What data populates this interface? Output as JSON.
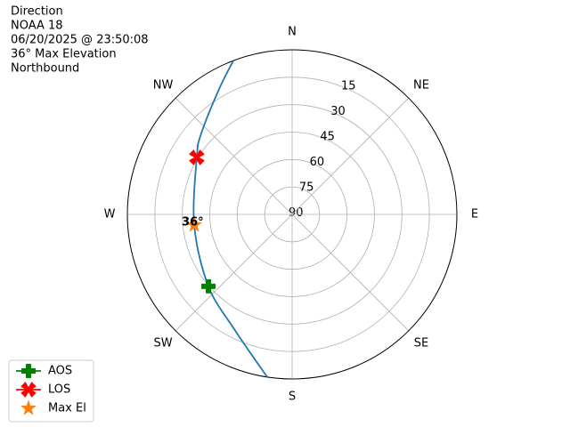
{
  "chart_data": {
    "type": "polar",
    "title_lines": [
      "Direction",
      "NOAA 18",
      "06/20/2025 @ 23:50:08",
      "36° Max Elevation",
      "Northbound"
    ],
    "track": {
      "azimuth": [
        188.7,
        206.7,
        229.3,
        263.8,
        300.9,
        311.7,
        329.8,
        339.1
      ],
      "elevation": [
        0,
        19.7,
        29.7,
        36.2,
        29.3,
        23.5,
        10.7,
        0
      ],
      "color": "#1f77b4"
    },
    "markers": [
      {
        "name": "AOS",
        "azimuth": 229.3,
        "elevation": 29.7,
        "color": "#008000",
        "marker": "plus",
        "line": true
      },
      {
        "name": "LOS",
        "azimuth": 300.9,
        "elevation": 29.3,
        "color": "#ff0000",
        "marker": "x",
        "line": true
      },
      {
        "name": "Max El",
        "azimuth": 263.8,
        "elevation": 36.2,
        "color": "#ff7f0e",
        "marker": "star",
        "line": false
      }
    ],
    "annotation": "36°",
    "rlim": [
      90,
      0
    ],
    "rticks": [
      90,
      75,
      60,
      45,
      30,
      15
    ],
    "thetaticks": [
      {
        "value": 0,
        "label": "N"
      },
      {
        "value": 45,
        "label": "NE"
      },
      {
        "value": 90,
        "label": "E"
      },
      {
        "value": 135,
        "label": "SE"
      },
      {
        "value": 180,
        "label": "S"
      },
      {
        "value": 225,
        "label": "SW"
      },
      {
        "value": 270,
        "label": "W"
      },
      {
        "value": 315,
        "label": "NW"
      }
    ],
    "grid": true,
    "legend": "lower left"
  }
}
